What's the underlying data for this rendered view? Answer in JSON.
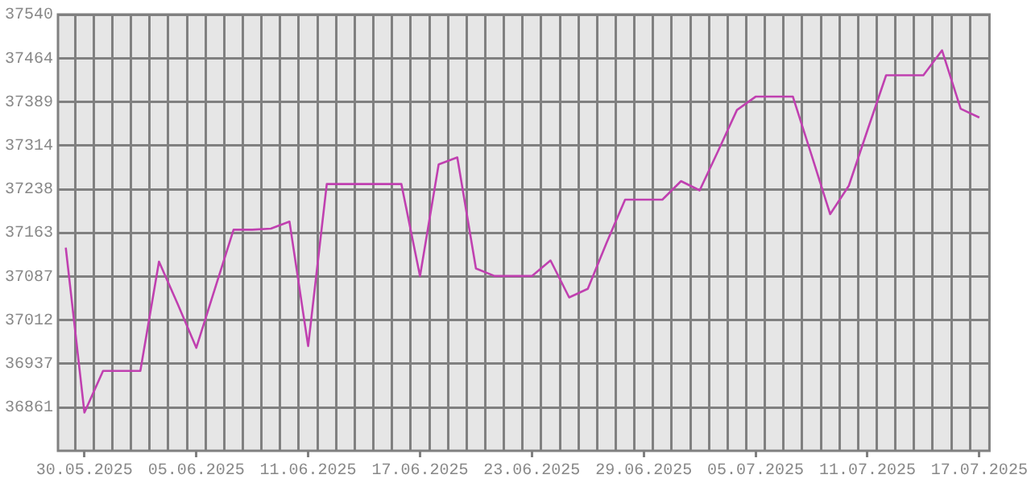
{
  "chart_data": {
    "type": "line",
    "x": [
      "2025-05-29",
      "2025-05-30",
      "2025-05-31",
      "2025-06-01",
      "2025-06-02",
      "2025-06-03",
      "2025-06-04",
      "2025-06-05",
      "2025-06-06",
      "2025-06-07",
      "2025-06-08",
      "2025-06-09",
      "2025-06-10",
      "2025-06-11",
      "2025-06-12",
      "2025-06-13",
      "2025-06-14",
      "2025-06-15",
      "2025-06-16",
      "2025-06-17",
      "2025-06-18",
      "2025-06-19",
      "2025-06-20",
      "2025-06-21",
      "2025-06-22",
      "2025-06-23",
      "2025-06-24",
      "2025-06-25",
      "2025-06-26",
      "2025-06-27",
      "2025-06-28",
      "2025-06-29",
      "2025-06-30",
      "2025-07-01",
      "2025-07-02",
      "2025-07-03",
      "2025-07-04",
      "2025-07-05",
      "2025-07-06",
      "2025-07-07",
      "2025-07-08",
      "2025-07-09",
      "2025-07-10",
      "2025-07-11",
      "2025-07-12",
      "2025-07-13",
      "2025-07-14",
      "2025-07-15",
      "2025-07-16",
      "2025-07-17"
    ],
    "series": [
      {
        "color": "#c040b0",
        "values": [
          37137,
          36852,
          36924,
          36924,
          36924,
          37113,
          37040,
          36964,
          37066,
          37168,
          37168,
          37170,
          37182,
          36967,
          37247,
          37247,
          37247,
          37247,
          37247,
          37088,
          37281,
          37293,
          37101,
          37088,
          37088,
          37088,
          37115,
          37051,
          37066,
          37145,
          37220,
          37220,
          37220,
          37252,
          37236,
          37305,
          37375,
          37398,
          37398,
          37398,
          37297,
          37195,
          37244,
          37340,
          37435,
          37435,
          37435,
          37478,
          37377,
          37362
        ]
      }
    ],
    "xlim": [
      "2025-05-28T14:00",
      "2025-07-17T13:00"
    ],
    "xticks": [
      {
        "value": "2025-05-29T12:00",
        "label": null
      },
      {
        "value": "2025-05-30",
        "label": "30.05.2025"
      },
      {
        "value": "2025-05-30T12:00",
        "label": null
      },
      {
        "value": "2025-05-31T12:00",
        "label": null
      },
      {
        "value": "2025-06-01T12:00",
        "label": null
      },
      {
        "value": "2025-06-02T12:00",
        "label": null
      },
      {
        "value": "2025-06-03T12:00",
        "label": null
      },
      {
        "value": "2025-06-04T12:00",
        "label": null
      },
      {
        "value": "2025-06-05",
        "label": "05.06.2025"
      },
      {
        "value": "2025-06-05T12:00",
        "label": null
      },
      {
        "value": "2025-06-06T12:00",
        "label": null
      },
      {
        "value": "2025-06-07T12:00",
        "label": null
      },
      {
        "value": "2025-06-08T12:00",
        "label": null
      },
      {
        "value": "2025-06-09T12:00",
        "label": null
      },
      {
        "value": "2025-06-10T12:00",
        "label": null
      },
      {
        "value": "2025-06-11",
        "label": "11.06.2025"
      },
      {
        "value": "2025-06-11T12:00",
        "label": null
      },
      {
        "value": "2025-06-12T12:00",
        "label": null
      },
      {
        "value": "2025-06-13T12:00",
        "label": null
      },
      {
        "value": "2025-06-14T12:00",
        "label": null
      },
      {
        "value": "2025-06-15T12:00",
        "label": null
      },
      {
        "value": "2025-06-16T12:00",
        "label": null
      },
      {
        "value": "2025-06-17",
        "label": "17.06.2025"
      },
      {
        "value": "2025-06-17T12:00",
        "label": null
      },
      {
        "value": "2025-06-18T12:00",
        "label": null
      },
      {
        "value": "2025-06-19T12:00",
        "label": null
      },
      {
        "value": "2025-06-20T12:00",
        "label": null
      },
      {
        "value": "2025-06-21T12:00",
        "label": null
      },
      {
        "value": "2025-06-22T12:00",
        "label": null
      },
      {
        "value": "2025-06-23",
        "label": "23.06.2025"
      },
      {
        "value": "2025-06-23T12:00",
        "label": null
      },
      {
        "value": "2025-06-24T12:00",
        "label": null
      },
      {
        "value": "2025-06-25T12:00",
        "label": null
      },
      {
        "value": "2025-06-26T12:00",
        "label": null
      },
      {
        "value": "2025-06-27T12:00",
        "label": null
      },
      {
        "value": "2025-06-28T12:00",
        "label": null
      },
      {
        "value": "2025-06-29",
        "label": "29.06.2025"
      },
      {
        "value": "2025-06-29T12:00",
        "label": null
      },
      {
        "value": "2025-06-30T12:00",
        "label": null
      },
      {
        "value": "2025-07-01T12:00",
        "label": null
      },
      {
        "value": "2025-07-02T12:00",
        "label": null
      },
      {
        "value": "2025-07-03T12:00",
        "label": null
      },
      {
        "value": "2025-07-04T12:00",
        "label": null
      },
      {
        "value": "2025-07-05",
        "label": "05.07.2025"
      },
      {
        "value": "2025-07-05T12:00",
        "label": null
      },
      {
        "value": "2025-07-06T12:00",
        "label": null
      },
      {
        "value": "2025-07-07T12:00",
        "label": null
      },
      {
        "value": "2025-07-08T12:00",
        "label": null
      },
      {
        "value": "2025-07-09T12:00",
        "label": null
      },
      {
        "value": "2025-07-10T12:00",
        "label": null
      },
      {
        "value": "2025-07-11",
        "label": "11.07.2025"
      },
      {
        "value": "2025-07-11T12:00",
        "label": null
      },
      {
        "value": "2025-07-12T12:00",
        "label": null
      },
      {
        "value": "2025-07-13T12:00",
        "label": null
      },
      {
        "value": "2025-07-14T12:00",
        "label": null
      },
      {
        "value": "2025-07-15T12:00",
        "label": null
      },
      {
        "value": "2025-07-16T12:00",
        "label": null
      },
      {
        "value": "2025-07-17",
        "label": "17.07.2025"
      }
    ],
    "ylim": [
      36786,
      37540
    ],
    "yticks": [
      36861,
      36937,
      37012,
      37087,
      37163,
      37238,
      37314,
      37389,
      37464,
      37540
    ],
    "grid": true,
    "legend": false,
    "marker": "none",
    "line_style": "solid"
  }
}
